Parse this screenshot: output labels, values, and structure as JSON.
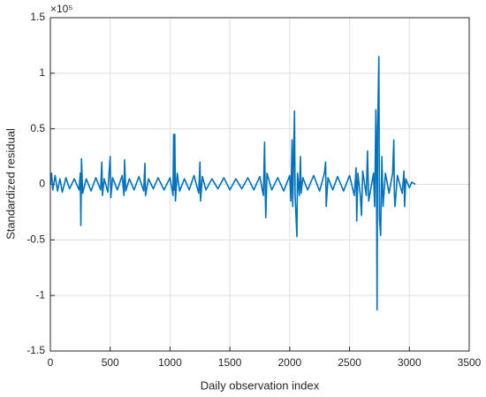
{
  "chart_data": {
    "type": "line",
    "xlabel": "Daily observation index",
    "ylabel": "Standardized residual",
    "y_multiplier": "×10⁵",
    "xlim": [
      0,
      3500
    ],
    "xticks": [
      0,
      500,
      1000,
      1500,
      2000,
      2500,
      3000,
      3500
    ],
    "ylim": [
      -1.5,
      1.5
    ],
    "yticks": [
      -1.5,
      -1,
      -0.5,
      0,
      0.5,
      1,
      1.5
    ],
    "grid": true,
    "series": [
      {
        "color": "#0072bd",
        "x": [
          0,
          10,
          20,
          40,
          60,
          80,
          100,
          130,
          160,
          200,
          240,
          250,
          255,
          260,
          270,
          300,
          340,
          380,
          420,
          430,
          435,
          450,
          480,
          500,
          505,
          520,
          560,
          600,
          615,
          620,
          630,
          660,
          700,
          740,
          780,
          790,
          795,
          820,
          860,
          900,
          950,
          1000,
          1025,
          1030,
          1035,
          1040,
          1045,
          1060,
          1080,
          1120,
          1160,
          1200,
          1240,
          1250,
          1255,
          1270,
          1300,
          1350,
          1400,
          1450,
          1500,
          1550,
          1600,
          1650,
          1700,
          1750,
          1780,
          1790,
          1795,
          1800,
          1810,
          1850,
          1900,
          1950,
          2000,
          2010,
          2020,
          2025,
          2040,
          2045,
          2060,
          2065,
          2080,
          2090,
          2095,
          2110,
          2150,
          2200,
          2250,
          2290,
          2300,
          2305,
          2320,
          2360,
          2400,
          2450,
          2500,
          2540,
          2555,
          2560,
          2570,
          2590,
          2600,
          2610,
          2640,
          2650,
          2660,
          2700,
          2710,
          2720,
          2725,
          2730,
          2735,
          2745,
          2750,
          2760,
          2770,
          2780,
          2800,
          2830,
          2860,
          2870,
          2875,
          2880,
          2900,
          2940,
          2955,
          2960,
          2970,
          3000,
          3020,
          3050
        ],
        "values": [
          0,
          0.1,
          -0.05,
          0.08,
          -0.06,
          0.05,
          -0.07,
          0.06,
          -0.04,
          0.05,
          -0.05,
          0.1,
          -0.37,
          0.23,
          -0.08,
          0.05,
          -0.06,
          0.06,
          -0.05,
          0.2,
          -0.1,
          0.05,
          -0.07,
          0.25,
          -0.12,
          0.06,
          -0.05,
          0.08,
          -0.1,
          0.22,
          -0.06,
          0.05,
          -0.05,
          0.07,
          -0.06,
          0.19,
          -0.1,
          0.05,
          -0.04,
          0.06,
          -0.05,
          0.06,
          -0.1,
          0.45,
          -0.05,
          0.45,
          -0.15,
          0.1,
          -0.06,
          0.05,
          -0.05,
          0.08,
          -0.08,
          0.2,
          -0.15,
          0.07,
          -0.05,
          0.05,
          -0.04,
          0.06,
          -0.05,
          0.05,
          -0.04,
          0.06,
          -0.05,
          0.07,
          -0.1,
          0.38,
          -0.05,
          -0.3,
          0.1,
          -0.05,
          0.06,
          -0.06,
          0.08,
          -0.15,
          0.4,
          -0.2,
          0.66,
          -0.1,
          -0.47,
          0.1,
          -0.1,
          0.25,
          -0.08,
          0.06,
          -0.05,
          0.08,
          -0.06,
          0.1,
          0.2,
          -0.2,
          0.06,
          -0.05,
          0.07,
          -0.06,
          0.08,
          -0.1,
          0.15,
          -0.33,
          0.1,
          -0.1,
          -0.28,
          0.12,
          -0.1,
          0.3,
          -0.15,
          0.1,
          -0.2,
          0.67,
          0.2,
          -1.13,
          0.5,
          1.15,
          -0.3,
          -0.46,
          0.25,
          -0.2,
          0.1,
          -0.08,
          0.1,
          0.4,
          -0.1,
          -0.2,
          0.08,
          -0.08,
          0.12,
          -0.2,
          0.05,
          -0.03,
          0.02,
          0
        ]
      }
    ]
  }
}
